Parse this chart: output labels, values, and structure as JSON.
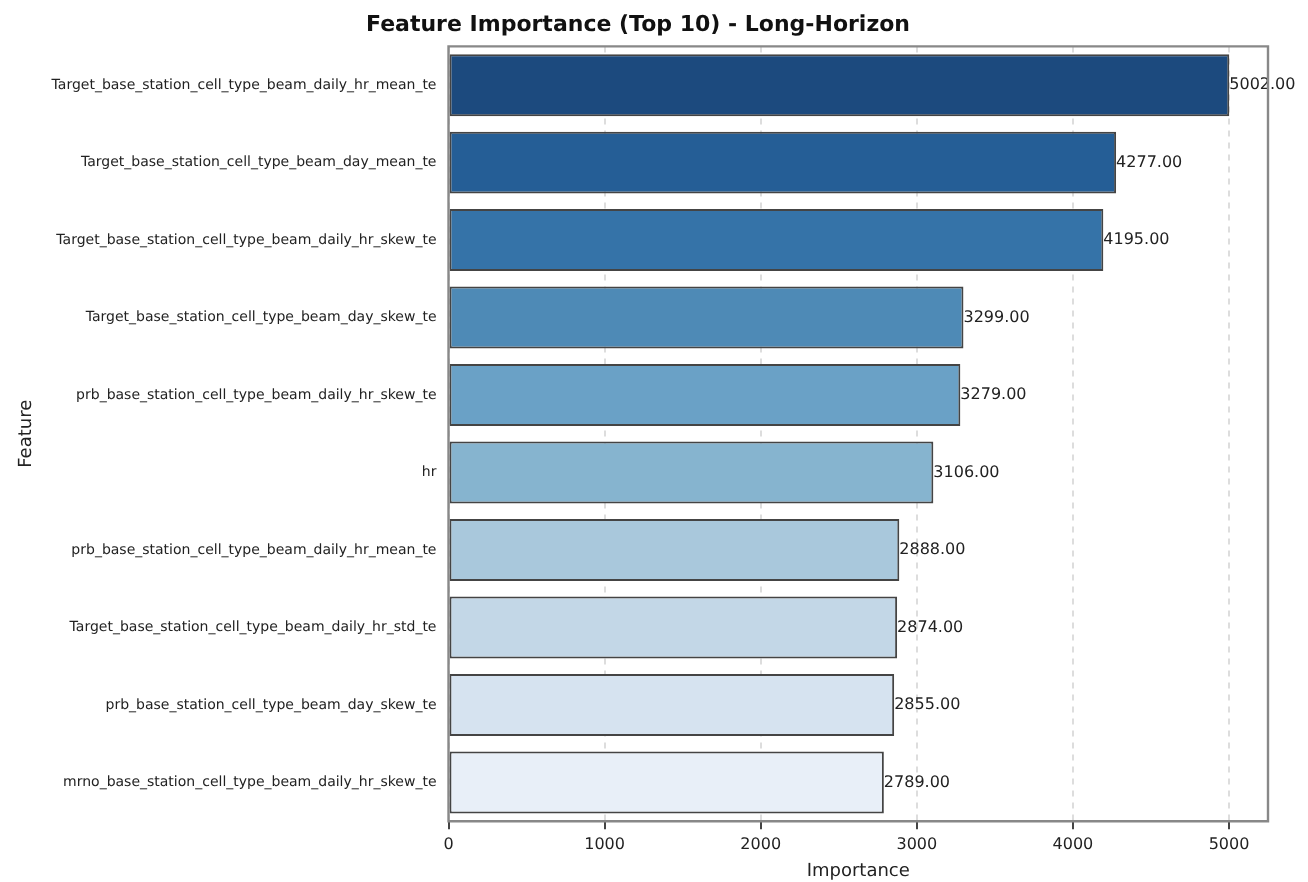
{
  "chart_data": {
    "type": "bar",
    "orientation": "horizontal",
    "title": "Feature Importance (Top 10) - Long-Horizon",
    "xlabel": "Importance",
    "ylabel": "Feature",
    "categories": [
      "Target_base_station_cell_type_beam_daily_hr_mean_te",
      "Target_base_station_cell_type_beam_day_mean_te",
      "Target_base_station_cell_type_beam_daily_hr_skew_te",
      "Target_base_station_cell_type_beam_day_skew_te",
      "prb_base_station_cell_type_beam_daily_hr_skew_te",
      "hr",
      "prb_base_station_cell_type_beam_daily_hr_mean_te",
      "Target_base_station_cell_type_beam_daily_hr_std_te",
      "prb_base_station_cell_type_beam_day_skew_te",
      "mrno_base_station_cell_type_beam_daily_hr_skew_te"
    ],
    "values": [
      5002,
      4277,
      4195,
      3299,
      3279,
      3106,
      2888,
      2874,
      2855,
      2789
    ],
    "value_labels": [
      "5002.00",
      "4277.00",
      "4195.00",
      "3299.00",
      "3279.00",
      "3106.00",
      "2888.00",
      "2874.00",
      "2855.00",
      "2789.00"
    ],
    "colors": [
      "#1c4a7e",
      "#255e96",
      "#3573a8",
      "#4e8ab6",
      "#6aa1c6",
      "#86b4cf",
      "#a9c8dc",
      "#c3d7e7",
      "#d6e3f0",
      "#e8eff8"
    ],
    "xlim": [
      0,
      5250
    ],
    "xticks": [
      0,
      1000,
      2000,
      3000,
      4000,
      5000
    ],
    "grid": "x",
    "legend": false
  }
}
